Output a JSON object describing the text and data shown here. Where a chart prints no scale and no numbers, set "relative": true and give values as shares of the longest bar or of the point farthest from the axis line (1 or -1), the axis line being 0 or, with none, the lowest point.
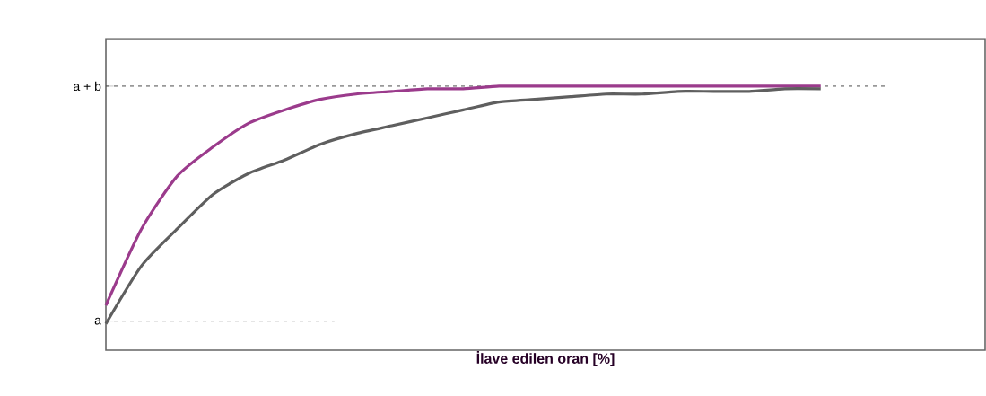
{
  "chart_data": {
    "type": "line",
    "relative": true,
    "xlabel": "İlave edilen oran  [%]",
    "categories": [
      null,
      null,
      null,
      null,
      null,
      null,
      null,
      null,
      null,
      null,
      null,
      null,
      null,
      null,
      null,
      null,
      null,
      null,
      null,
      null,
      null
    ],
    "series": [
      {
        "color": "#9b3b8c",
        "values": [
          0.17,
          0.46,
          0.66,
          0.77,
          0.86,
          0.91,
          0.95,
          0.97,
          0.98,
          0.99,
          0.99,
          1.0,
          1.0,
          1.0,
          1.0,
          1.0,
          1.0,
          1.0,
          1.0,
          1.0,
          1.0
        ]
      },
      {
        "color": "#5f5f5f",
        "values": [
          0.1,
          0.32,
          0.46,
          0.59,
          0.67,
          0.72,
          0.78,
          0.82,
          0.85,
          0.88,
          0.91,
          0.94,
          0.95,
          0.96,
          0.97,
          0.97,
          0.98,
          0.98,
          0.98,
          0.99,
          0.99
        ]
      }
    ],
    "ref_lines": [
      {
        "axis": "y",
        "value": 0.11,
        "label": "a",
        "line_style": "dashed"
      },
      {
        "axis": "y",
        "value": 1,
        "label": "a + b",
        "line_style": "dashed"
      }
    ],
    "grid": false,
    "marker": "none",
    "line_style": "solid"
  }
}
